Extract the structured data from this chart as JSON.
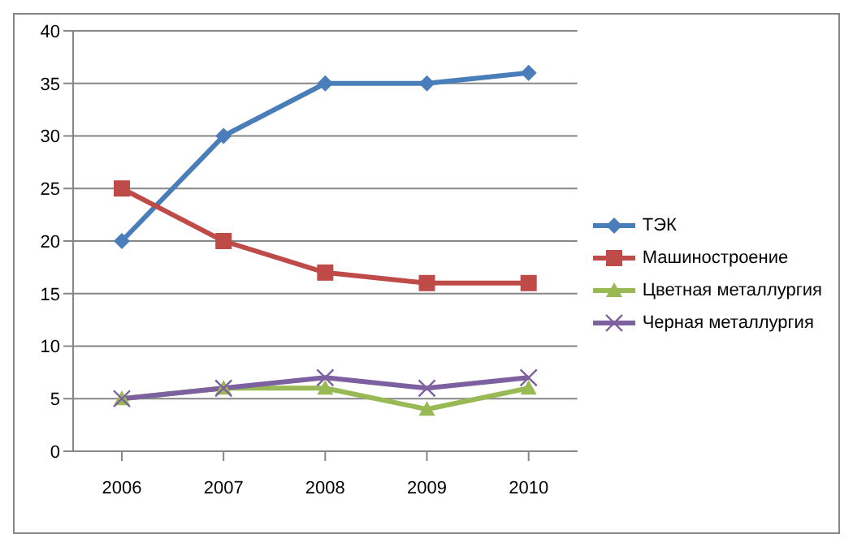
{
  "chart_data": {
    "type": "line",
    "categories": [
      "2006",
      "2007",
      "2008",
      "2009",
      "2010"
    ],
    "series": [
      {
        "name": "ТЭК",
        "color": "#4a7ebb",
        "marker": "diamond",
        "values": [
          20,
          30,
          35,
          35,
          36
        ]
      },
      {
        "name": "Машиностроение",
        "color": "#be4b48",
        "marker": "square",
        "values": [
          25,
          20,
          17,
          16,
          16
        ]
      },
      {
        "name": "Цветная металлургия",
        "color": "#98b954",
        "marker": "triangle",
        "values": [
          5,
          6,
          6,
          4,
          6
        ]
      },
      {
        "name": "Черная металлургия",
        "color": "#7d60a0",
        "marker": "cross",
        "values": [
          5,
          6,
          7,
          6,
          7
        ]
      }
    ],
    "ylim": [
      0,
      40
    ],
    "yticks": [
      0,
      5,
      10,
      15,
      20,
      25,
      30,
      35,
      40
    ],
    "grid": "y",
    "legend": "right"
  }
}
